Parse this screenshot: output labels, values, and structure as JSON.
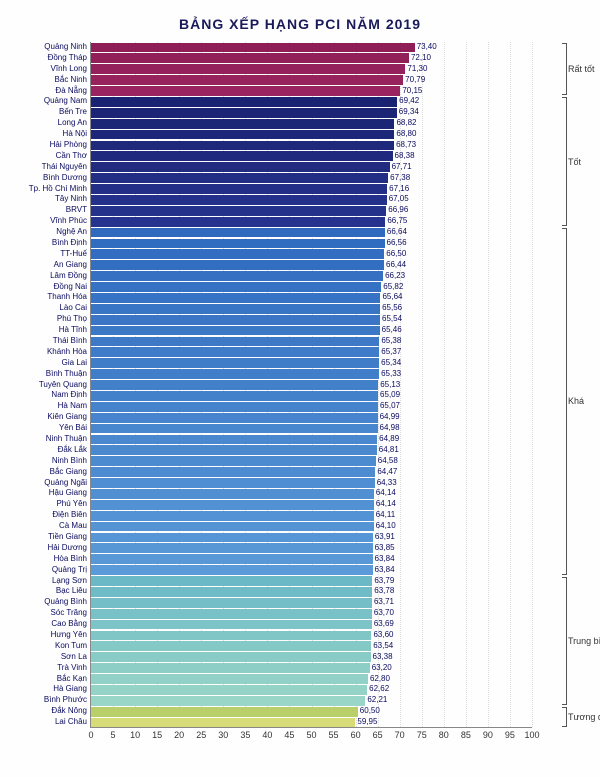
{
  "title": "BẢNG XẾP HẠNG PCI NĂM 2019",
  "chart": {
    "type": "bar-horizontal",
    "xmin": 0,
    "xmax": 100,
    "xtick_step": 5,
    "background": "#fefefe",
    "axis_color": "#888888",
    "grid_color": "rgba(120,120,120,0.25)",
    "label_fontsize": 8,
    "tick_fontsize": 9
  },
  "groups": [
    {
      "name": "Rất tốt",
      "colors": [
        "#8e1e55",
        "#9a2460"
      ],
      "from": 0,
      "to": 4
    },
    {
      "name": "Tốt",
      "colors": [
        "#1a2372",
        "#26338e"
      ],
      "from": 5,
      "to": 16
    },
    {
      "name": "Khá",
      "colors": [
        "#2f6abf",
        "#5a9ad8"
      ],
      "from": 17,
      "to": 48
    },
    {
      "name": "Trung bình",
      "colors": [
        "#6bb9c7",
        "#9ad6c7"
      ],
      "from": 49,
      "to": 60
    },
    {
      "name": "Tương đối thấp",
      "colors": [
        "#b8cf6a",
        "#d7db78"
      ],
      "from": 61,
      "to": 62
    }
  ],
  "rows": [
    {
      "province": "Quảng Ninh",
      "value": 73.4
    },
    {
      "province": "Đồng Tháp",
      "value": 72.1
    },
    {
      "province": "Vĩnh Long",
      "value": 71.3
    },
    {
      "province": "Bắc Ninh",
      "value": 70.79
    },
    {
      "province": "Đà Nẵng",
      "value": 70.15
    },
    {
      "province": "Quảng Nam",
      "value": 69.42
    },
    {
      "province": "Bến Tre",
      "value": 69.34
    },
    {
      "province": "Long An",
      "value": 68.82
    },
    {
      "province": "Hà Nội",
      "value": 68.8
    },
    {
      "province": "Hải Phòng",
      "value": 68.73
    },
    {
      "province": "Cần Thơ",
      "value": 68.38
    },
    {
      "province": "Thái Nguyên",
      "value": 67.71
    },
    {
      "province": "Bình Dương",
      "value": 67.38
    },
    {
      "province": "Tp. Hồ Chí Minh",
      "value": 67.16
    },
    {
      "province": "Tây Ninh",
      "value": 67.05
    },
    {
      "province": "BRVT",
      "value": 66.96
    },
    {
      "province": "Vĩnh Phúc",
      "value": 66.75
    },
    {
      "province": "Nghệ An",
      "value": 66.64
    },
    {
      "province": "Bình Định",
      "value": 66.56
    },
    {
      "province": "TT-Huế",
      "value": 66.5
    },
    {
      "province": "An Giang",
      "value": 66.44
    },
    {
      "province": "Lâm Đồng",
      "value": 66.23
    },
    {
      "province": "Đồng Nai",
      "value": 65.82
    },
    {
      "province": "Thanh Hóa",
      "value": 65.64
    },
    {
      "province": "Lào Cai",
      "value": 65.56
    },
    {
      "province": "Phú Thọ",
      "value": 65.54
    },
    {
      "province": "Hà Tĩnh",
      "value": 65.46
    },
    {
      "province": "Thái Bình",
      "value": 65.38
    },
    {
      "province": "Khánh Hòa",
      "value": 65.37
    },
    {
      "province": "Gia Lai",
      "value": 65.34
    },
    {
      "province": "Bình Thuận",
      "value": 65.33
    },
    {
      "province": "Tuyên Quang",
      "value": 65.13
    },
    {
      "province": "Nam Định",
      "value": 65.09
    },
    {
      "province": "Hà Nam",
      "value": 65.07
    },
    {
      "province": "Kiên Giang",
      "value": 64.99
    },
    {
      "province": "Yên Bái",
      "value": 64.98
    },
    {
      "province": "Ninh Thuận",
      "value": 64.89
    },
    {
      "province": "Đắk Lắk",
      "value": 64.81
    },
    {
      "province": "Ninh Bình",
      "value": 64.58
    },
    {
      "province": "Bắc Giang",
      "value": 64.47
    },
    {
      "province": "Quảng Ngãi",
      "value": 64.33
    },
    {
      "province": "Hậu Giang",
      "value": 64.14
    },
    {
      "province": "Phú Yên",
      "value": 64.14
    },
    {
      "province": "Điện Biên",
      "value": 64.11
    },
    {
      "province": "Cà Mau",
      "value": 64.1
    },
    {
      "province": "Tiền Giang",
      "value": 63.91
    },
    {
      "province": "Hải Dương",
      "value": 63.85
    },
    {
      "province": "Hòa Bình",
      "value": 63.84
    },
    {
      "province": "Quảng Trị",
      "value": 63.84
    },
    {
      "province": "Lạng Sơn",
      "value": 63.79
    },
    {
      "province": "Bạc Liêu",
      "value": 63.78
    },
    {
      "province": "Quảng Bình",
      "value": 63.71
    },
    {
      "province": "Sóc Trăng",
      "value": 63.7
    },
    {
      "province": "Cao Bằng",
      "value": 63.69
    },
    {
      "province": "Hưng Yên",
      "value": 63.6
    },
    {
      "province": "Kon Tum",
      "value": 63.54
    },
    {
      "province": "Sơn La",
      "value": 63.38
    },
    {
      "province": "Trà Vinh",
      "value": 63.2
    },
    {
      "province": "Bắc Kạn",
      "value": 62.8
    },
    {
      "province": "Hà Giang",
      "value": 62.62
    },
    {
      "province": "Bình Phước",
      "value": 62.21
    },
    {
      "province": "Đắk Nông",
      "value": 60.5
    },
    {
      "province": "Lai Châu",
      "value": 59.95
    }
  ]
}
